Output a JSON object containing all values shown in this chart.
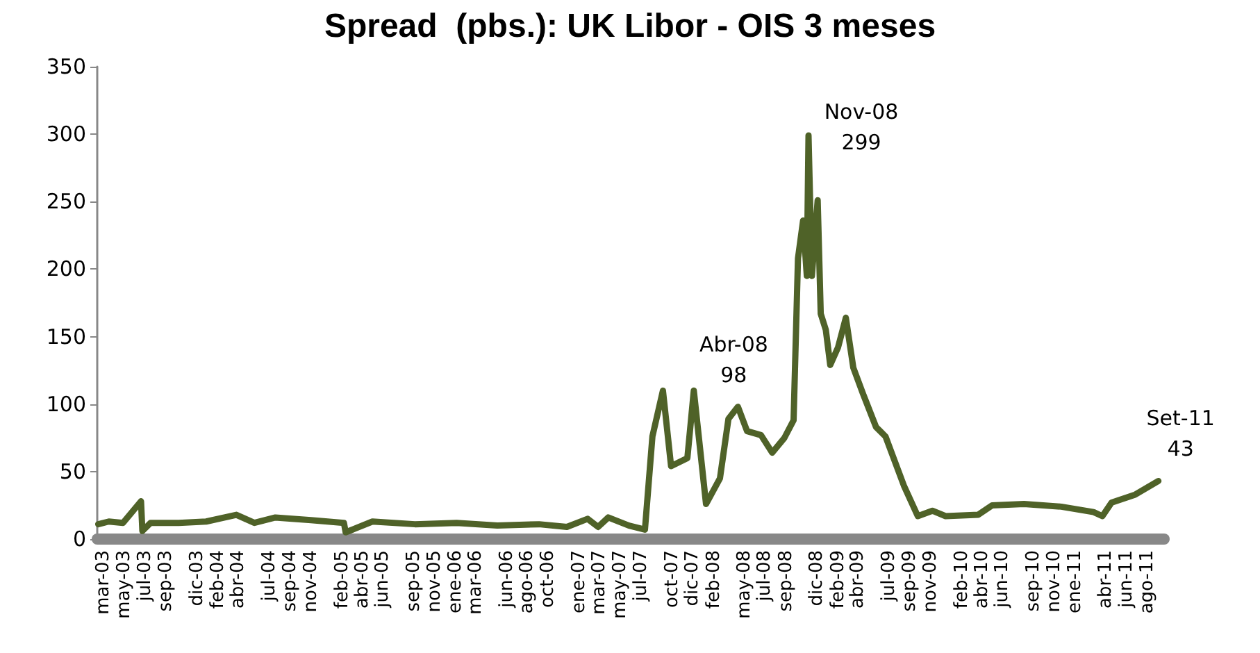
{
  "chart_data": {
    "type": "line",
    "title": "Spread  (pbs.): UK Libor - OIS 3 meses",
    "x": [
      "2003-02-13",
      "2003-03-16",
      "2003-04-27",
      "2003-06-19",
      "2003-06-23",
      "2003-07-17",
      "2003-10-08",
      "2003-12-28",
      "2004-03-26",
      "2004-05-18",
      "2004-07-19",
      "2004-11-01",
      "2005-02-06",
      "2005-02-11",
      "2005-05-01",
      "2005-09-03",
      "2006-01-04",
      "2006-05-04",
      "2006-09-04",
      "2006-11-25",
      "2007-01-25",
      "2007-02-25",
      "2007-03-27",
      "2007-05-27",
      "2007-07-13",
      "2007-08-04",
      "2007-09-04",
      "2007-09-28",
      "2007-11-15",
      "2007-12-04",
      "2008-01-09",
      "2008-02-19",
      "2008-03-15",
      "2008-04-12",
      "2008-05-09",
      "2008-06-19",
      "2008-07-22",
      "2008-08-27",
      "2008-09-23",
      "2008-10-06",
      "2008-10-21",
      "2008-11-01",
      "2008-11-06",
      "2008-11-16",
      "2008-12-03",
      "2008-12-12",
      "2008-12-27",
      "2009-01-09",
      "2009-02-01",
      "2009-02-24",
      "2009-03-18",
      "2009-04-15",
      "2009-05-24",
      "2009-06-21",
      "2009-08-15",
      "2009-09-24",
      "2009-11-06",
      "2009-12-15",
      "2010-03-21",
      "2010-05-01",
      "2010-08-03",
      "2010-11-21",
      "2011-02-24",
      "2011-03-22",
      "2011-04-18",
      "2011-06-27",
      "2011-09-03"
    ],
    "series": [
      {
        "color": "#4f6228",
        "values": [
          11,
          13,
          12,
          28,
          6,
          12,
          12,
          13,
          18,
          12,
          16,
          14,
          12,
          5,
          13,
          11,
          12,
          10,
          11,
          9,
          15,
          9,
          16,
          10,
          7,
          76,
          110,
          54,
          60,
          110,
          26,
          45,
          89,
          98,
          80,
          77,
          64,
          75,
          88,
          208,
          236,
          195,
          299,
          195,
          251,
          167,
          155,
          129,
          142,
          164,
          127,
          108,
          83,
          76,
          39,
          17,
          21,
          17,
          18,
          25,
          26,
          24,
          20,
          17,
          27,
          33,
          43
        ]
      }
    ],
    "annotations": [
      {
        "text": "Nov-08\n299",
        "x": "2008-11-06",
        "y": 299
      },
      {
        "text": "Abr-08\n98",
        "x": "2008-04-12",
        "y": 98
      },
      {
        "text": "Set-11\n43",
        "x": "2011-09-03",
        "y": 43
      }
    ],
    "xlim": [
      "2003-02-10",
      "2011-09-20"
    ],
    "xticks": [
      {
        "value": "2003-03-01",
        "label": "mar-03"
      },
      {
        "value": "2003-05-01",
        "label": "may-03"
      },
      {
        "value": "2003-07-01",
        "label": "jul-03"
      },
      {
        "value": "2003-09-01",
        "label": "sep-03"
      },
      {
        "value": "2003-12-01",
        "label": "dic-03"
      },
      {
        "value": "2004-02-01",
        "label": "feb-04"
      },
      {
        "value": "2004-04-01",
        "label": "abr-04"
      },
      {
        "value": "2004-07-01",
        "label": "jul-04"
      },
      {
        "value": "2004-09-01",
        "label": "sep-04"
      },
      {
        "value": "2004-11-01",
        "label": "nov-04"
      },
      {
        "value": "2005-02-01",
        "label": "feb-05"
      },
      {
        "value": "2005-04-01",
        "label": "abr-05"
      },
      {
        "value": "2005-06-01",
        "label": "jun-05"
      },
      {
        "value": "2005-09-01",
        "label": "sep-05"
      },
      {
        "value": "2005-11-01",
        "label": "nov-05"
      },
      {
        "value": "2006-01-01",
        "label": "ene-06"
      },
      {
        "value": "2006-03-01",
        "label": "mar-06"
      },
      {
        "value": "2006-06-01",
        "label": "jun-06"
      },
      {
        "value": "2006-08-01",
        "label": "ago-06"
      },
      {
        "value": "2006-10-01",
        "label": "oct-06"
      },
      {
        "value": "2007-01-01",
        "label": "ene-07"
      },
      {
        "value": "2007-03-01",
        "label": "mar-07"
      },
      {
        "value": "2007-05-01",
        "label": "may-07"
      },
      {
        "value": "2007-07-01",
        "label": "jul-07"
      },
      {
        "value": "2007-10-01",
        "label": "oct-07"
      },
      {
        "value": "2007-12-01",
        "label": "dic-07"
      },
      {
        "value": "2008-02-01",
        "label": "feb-08"
      },
      {
        "value": "2008-05-01",
        "label": "may-08"
      },
      {
        "value": "2008-07-01",
        "label": "jul-08"
      },
      {
        "value": "2008-09-01",
        "label": "sep-08"
      },
      {
        "value": "2008-12-01",
        "label": "dic-08"
      },
      {
        "value": "2009-02-01",
        "label": "feb-09"
      },
      {
        "value": "2009-04-01",
        "label": "abr-09"
      },
      {
        "value": "2009-07-01",
        "label": "jul-09"
      },
      {
        "value": "2009-09-01",
        "label": "sep-09"
      },
      {
        "value": "2009-11-01",
        "label": "nov-09"
      },
      {
        "value": "2010-02-01",
        "label": "feb-10"
      },
      {
        "value": "2010-04-01",
        "label": "abr-10"
      },
      {
        "value": "2010-06-01",
        "label": "jun-10"
      },
      {
        "value": "2010-09-01",
        "label": "sep-10"
      },
      {
        "value": "2010-11-01",
        "label": "nov-10"
      },
      {
        "value": "2011-01-01",
        "label": "ene-11"
      },
      {
        "value": "2011-04-01",
        "label": "abr-11"
      },
      {
        "value": "2011-06-01",
        "label": "jun-11"
      },
      {
        "value": "2011-08-01",
        "label": "ago-11"
      }
    ],
    "ylim": [
      0,
      350
    ],
    "yticks": [
      0,
      50,
      100,
      150,
      200,
      250,
      300,
      350
    ],
    "grid": false,
    "marker": "none",
    "line_style": "solid"
  }
}
